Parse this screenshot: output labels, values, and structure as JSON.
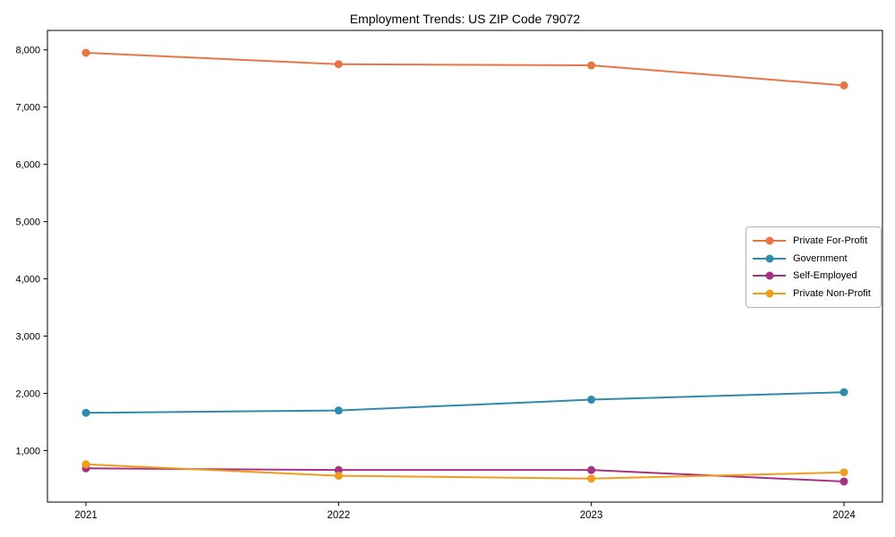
{
  "title": "Employment Trends: US ZIP Code 79072",
  "chart_data": {
    "type": "line",
    "title": "Employment Trends: US ZIP Code 79072",
    "xlabel": "",
    "ylabel": "",
    "categories": [
      "2021",
      "2022",
      "2023",
      "2024"
    ],
    "series": [
      {
        "name": "Private For-Profit",
        "color": "#e87645",
        "values": [
          7950,
          7750,
          7730,
          7380
        ]
      },
      {
        "name": "Government",
        "color": "#2f8bab",
        "values": [
          1660,
          1700,
          1890,
          2020
        ]
      },
      {
        "name": "Self-Employed",
        "color": "#a63284",
        "values": [
          690,
          660,
          660,
          460
        ]
      },
      {
        "name": "Private Non-Profit",
        "color": "#f09d1c",
        "values": [
          760,
          560,
          510,
          620
        ]
      }
    ],
    "ylim": [
      100,
      8340
    ],
    "yticks": [
      1000,
      2000,
      3000,
      4000,
      5000,
      6000,
      7000,
      8000
    ],
    "ytick_labels": [
      "1,000",
      "2,000",
      "3,000",
      "4,000",
      "5,000",
      "6,000",
      "7,000",
      "8,000"
    ],
    "grid": false,
    "legend_position": "center right",
    "marker": "circle",
    "line_width": 2,
    "marker_radius": 4.5,
    "spine_color": "#000000",
    "background_color": "#ffffff"
  }
}
